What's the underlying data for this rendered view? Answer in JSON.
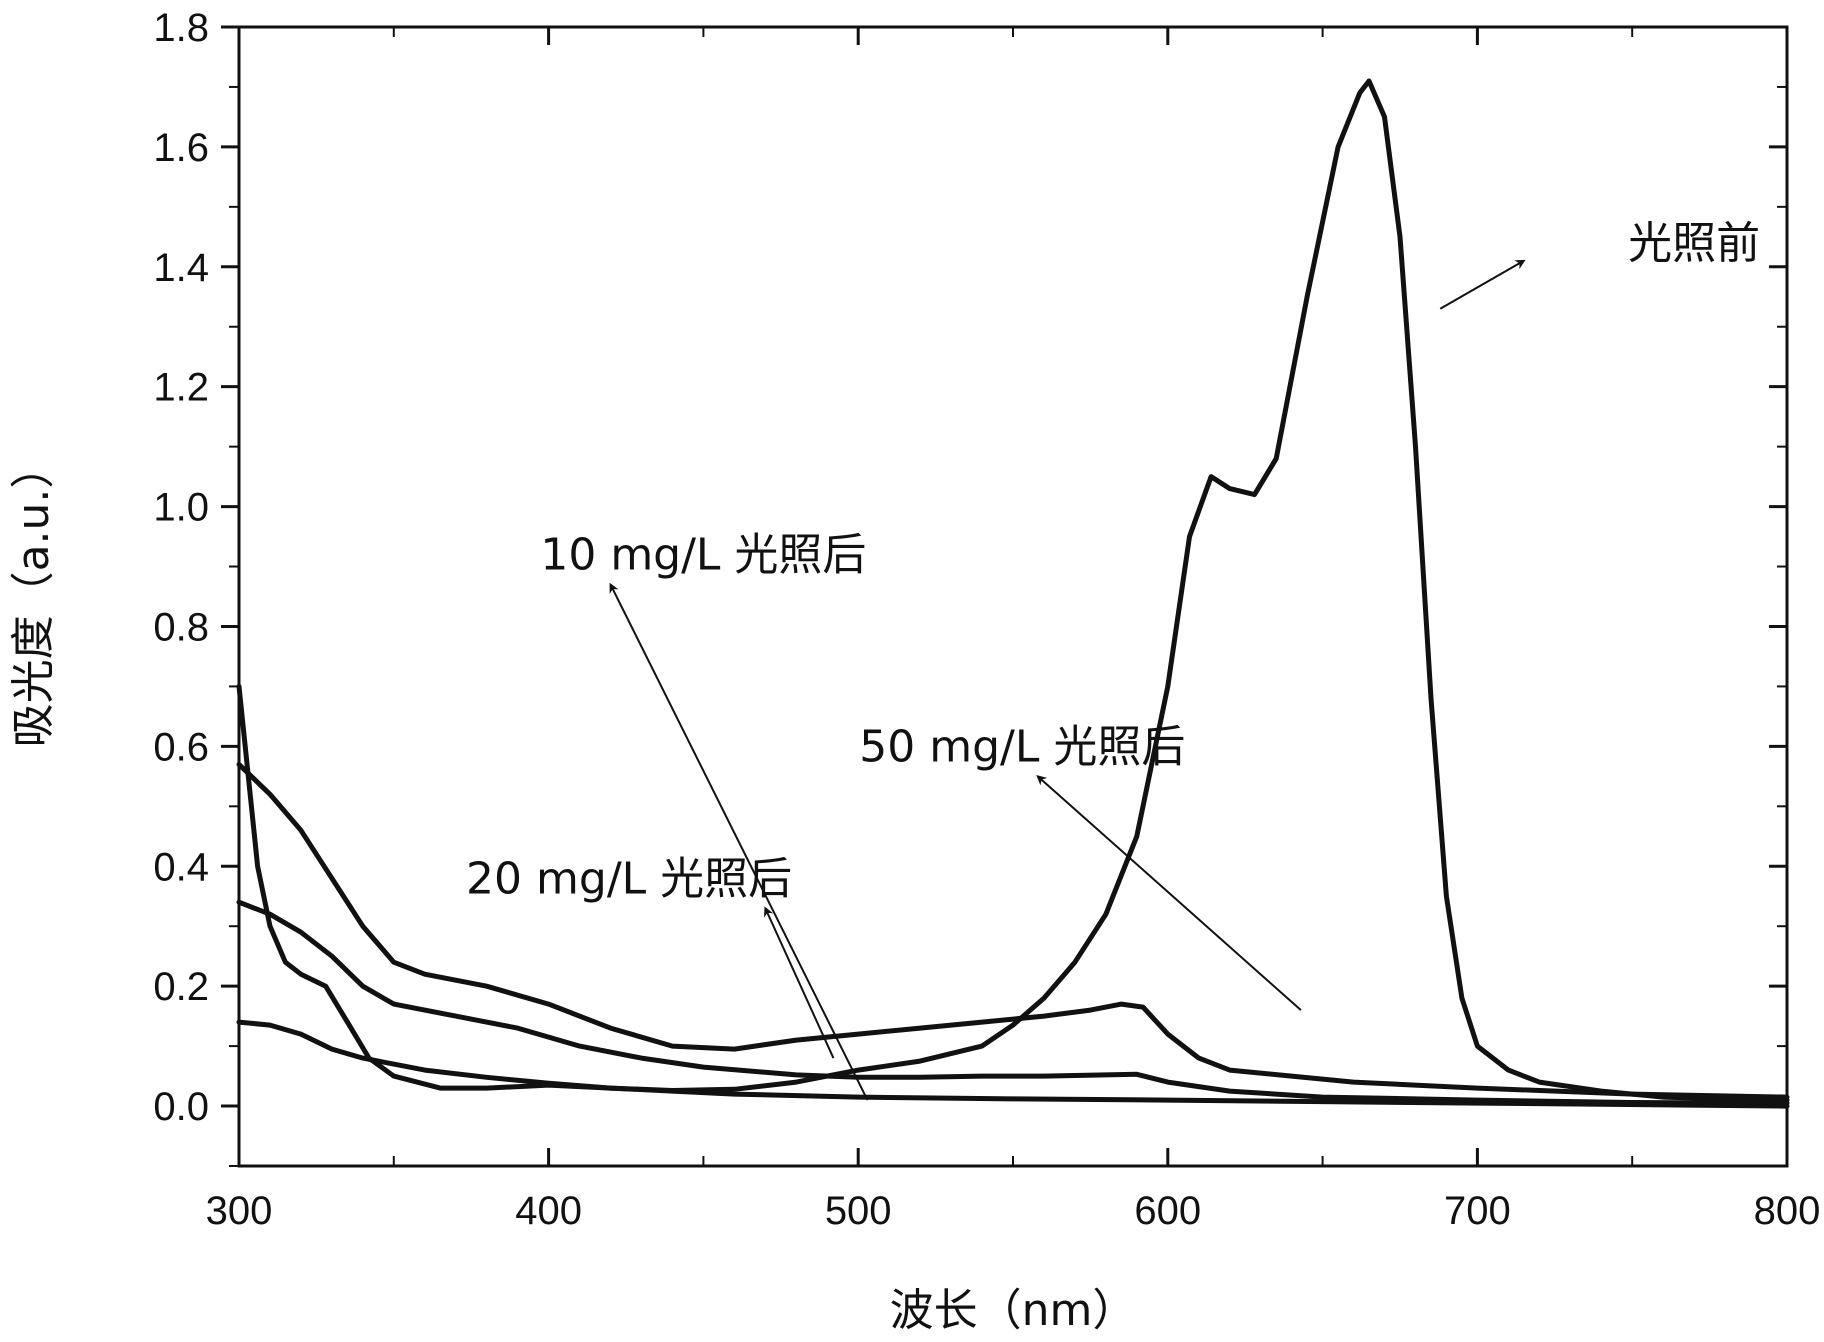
{
  "chart_data": {
    "type": "line",
    "xlabel": "波长（nm）",
    "ylabel": "吸光度（a.u.）",
    "xlim": [
      300,
      800
    ],
    "ylim": [
      -0.1,
      1.8
    ],
    "x_ticks": [
      "300",
      "400",
      "500",
      "600",
      "700",
      "800"
    ],
    "y_ticks": [
      "0.0",
      "0.2",
      "0.4",
      "0.6",
      "0.8",
      "1.0",
      "1.2",
      "1.4",
      "1.6",
      "1.8"
    ],
    "grid": false,
    "series": [
      {
        "name": "光照前",
        "points": [
          [
            300,
            0.14
          ],
          [
            310,
            0.135
          ],
          [
            320,
            0.12
          ],
          [
            330,
            0.095
          ],
          [
            340,
            0.08
          ],
          [
            360,
            0.06
          ],
          [
            380,
            0.048
          ],
          [
            400,
            0.038
          ],
          [
            420,
            0.03
          ],
          [
            440,
            0.026
          ],
          [
            460,
            0.028
          ],
          [
            480,
            0.04
          ],
          [
            500,
            0.06
          ],
          [
            520,
            0.075
          ],
          [
            540,
            0.1
          ],
          [
            550,
            0.135
          ],
          [
            560,
            0.18
          ],
          [
            570,
            0.24
          ],
          [
            580,
            0.32
          ],
          [
            590,
            0.45
          ],
          [
            600,
            0.7
          ],
          [
            607,
            0.95
          ],
          [
            614,
            1.05
          ],
          [
            620,
            1.03
          ],
          [
            628,
            1.02
          ],
          [
            635,
            1.08
          ],
          [
            645,
            1.35
          ],
          [
            655,
            1.6
          ],
          [
            662,
            1.69
          ],
          [
            665,
            1.71
          ],
          [
            670,
            1.65
          ],
          [
            675,
            1.45
          ],
          [
            680,
            1.1
          ],
          [
            685,
            0.68
          ],
          [
            690,
            0.35
          ],
          [
            695,
            0.18
          ],
          [
            700,
            0.1
          ],
          [
            710,
            0.06
          ],
          [
            720,
            0.04
          ],
          [
            740,
            0.025
          ],
          [
            760,
            0.015
          ],
          [
            780,
            0.012
          ],
          [
            800,
            0.01
          ]
        ]
      },
      {
        "name": "10 mg/L 光照后",
        "points": [
          [
            300,
            0.34
          ],
          [
            310,
            0.32
          ],
          [
            320,
            0.29
          ],
          [
            330,
            0.25
          ],
          [
            340,
            0.2
          ],
          [
            350,
            0.17
          ],
          [
            370,
            0.15
          ],
          [
            390,
            0.13
          ],
          [
            410,
            0.1
          ],
          [
            430,
            0.08
          ],
          [
            450,
            0.065
          ],
          [
            480,
            0.052
          ],
          [
            500,
            0.048
          ],
          [
            520,
            0.048
          ],
          [
            540,
            0.05
          ],
          [
            560,
            0.05
          ],
          [
            580,
            0.052
          ],
          [
            590,
            0.053
          ],
          [
            600,
            0.04
          ],
          [
            620,
            0.025
          ],
          [
            650,
            0.015
          ],
          [
            700,
            0.01
          ],
          [
            750,
            0.006
          ],
          [
            800,
            0.005
          ]
        ]
      },
      {
        "name": "20 mg/L 光照后",
        "points": [
          [
            300,
            0.57
          ],
          [
            310,
            0.52
          ],
          [
            320,
            0.46
          ],
          [
            330,
            0.38
          ],
          [
            340,
            0.3
          ],
          [
            350,
            0.24
          ],
          [
            360,
            0.22
          ],
          [
            380,
            0.2
          ],
          [
            400,
            0.17
          ],
          [
            420,
            0.13
          ],
          [
            440,
            0.1
          ],
          [
            460,
            0.095
          ],
          [
            480,
            0.11
          ],
          [
            500,
            0.12
          ],
          [
            520,
            0.13
          ],
          [
            540,
            0.14
          ],
          [
            560,
            0.15
          ],
          [
            575,
            0.16
          ],
          [
            585,
            0.17
          ],
          [
            592,
            0.165
          ],
          [
            600,
            0.12
          ],
          [
            610,
            0.08
          ],
          [
            620,
            0.06
          ],
          [
            640,
            0.05
          ],
          [
            660,
            0.04
          ],
          [
            700,
            0.03
          ],
          [
            750,
            0.02
          ],
          [
            800,
            0.015
          ]
        ]
      },
      {
        "name": "50 mg/L 光照后",
        "points": [
          [
            300,
            0.7
          ],
          [
            303,
            0.55
          ],
          [
            306,
            0.4
          ],
          [
            310,
            0.3
          ],
          [
            315,
            0.24
          ],
          [
            320,
            0.22
          ],
          [
            328,
            0.2
          ],
          [
            335,
            0.14
          ],
          [
            342,
            0.08
          ],
          [
            350,
            0.05
          ],
          [
            365,
            0.03
          ],
          [
            380,
            0.03
          ],
          [
            400,
            0.035
          ],
          [
            420,
            0.03
          ],
          [
            440,
            0.025
          ],
          [
            460,
            0.02
          ],
          [
            500,
            0.015
          ],
          [
            550,
            0.012
          ],
          [
            600,
            0.01
          ],
          [
            700,
            0.005
          ],
          [
            800,
            0.0
          ]
        ]
      }
    ],
    "annotations": [
      {
        "text": "光照前",
        "label_xy": [
          770,
          1.44
        ],
        "arrow_from": [
          688,
          1.33
        ],
        "arrow_to": [
          715,
          1.41
        ]
      },
      {
        "text": "10 mg/L 光照后",
        "label_xy": [
          450,
          0.92
        ],
        "arrow_from": [
          503,
          0.01
        ],
        "arrow_to": [
          420,
          0.87
        ]
      },
      {
        "text": "50 mg/L 光照后",
        "label_xy": [
          553,
          0.6
        ],
        "arrow_from": [
          643,
          0.16
        ],
        "arrow_to": [
          558,
          0.55
        ]
      },
      {
        "text": "20 mg/L 光照后",
        "label_xy": [
          426,
          0.38
        ],
        "arrow_from": [
          492,
          0.08
        ],
        "arrow_to": [
          470,
          0.33
        ]
      }
    ]
  }
}
